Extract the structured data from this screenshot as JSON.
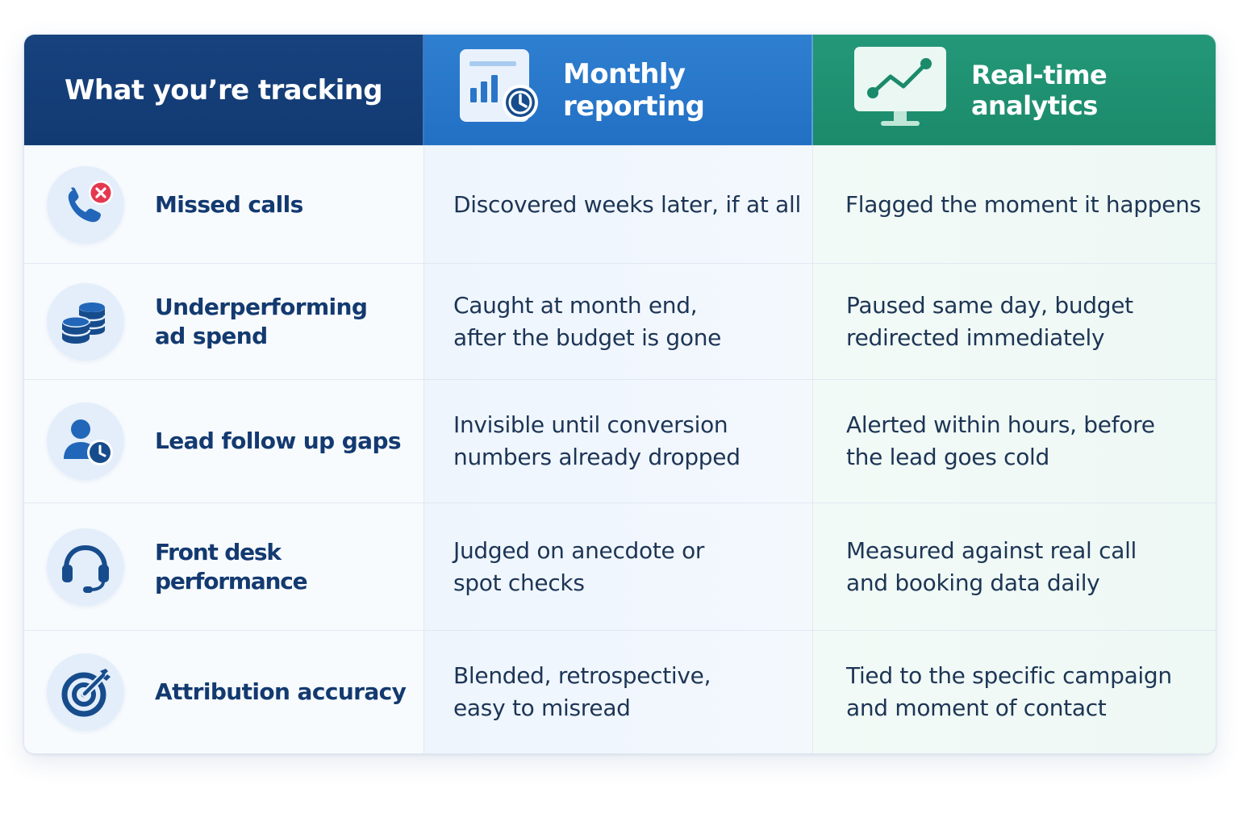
{
  "headers": {
    "col1": "What you’re tracking",
    "col2": "Monthly reporting",
    "col3": "Real-time analytics"
  },
  "header_icons": {
    "col2": "report-clock-icon",
    "col3": "monitor-trend-icon"
  },
  "rows": [
    {
      "label": "Missed calls",
      "icon": "missed-call-icon",
      "monthly": [
        "Discovered weeks later, if at all"
      ],
      "realtime": [
        "Flagged the moment it happens"
      ]
    },
    {
      "label": [
        "Underperforming",
        "ad spend"
      ],
      "icon": "coins-stack-icon",
      "monthly": [
        "Caught at month end,",
        "after the budget is gone"
      ],
      "realtime": [
        "Paused same day, budget",
        "redirected immediately"
      ]
    },
    {
      "label": "Lead follow up gaps",
      "icon": "user-clock-icon",
      "monthly": [
        "Invisible until conversion",
        "numbers already dropped"
      ],
      "realtime": [
        "Alerted within hours, before",
        "the lead goes cold"
      ]
    },
    {
      "label": "Front desk performance",
      "icon": "headset-icon",
      "monthly": [
        "Judged on anecdote or",
        "spot checks"
      ],
      "realtime": [
        "Measured against real call",
        "and booking data daily"
      ]
    },
    {
      "label": "Attribution accuracy",
      "icon": "target-icon",
      "monthly": [
        "Blended, retrospective,",
        "easy to misread"
      ],
      "realtime": [
        "Tied to the specific campaign",
        "and moment of contact"
      ]
    }
  ],
  "colors": {
    "header_navy": "#17427e",
    "header_blue": "#2877c9",
    "header_green": "#1f9171",
    "label_text": "#133a70",
    "body_text": "#1d3555",
    "alert_red": "#e5384f"
  }
}
